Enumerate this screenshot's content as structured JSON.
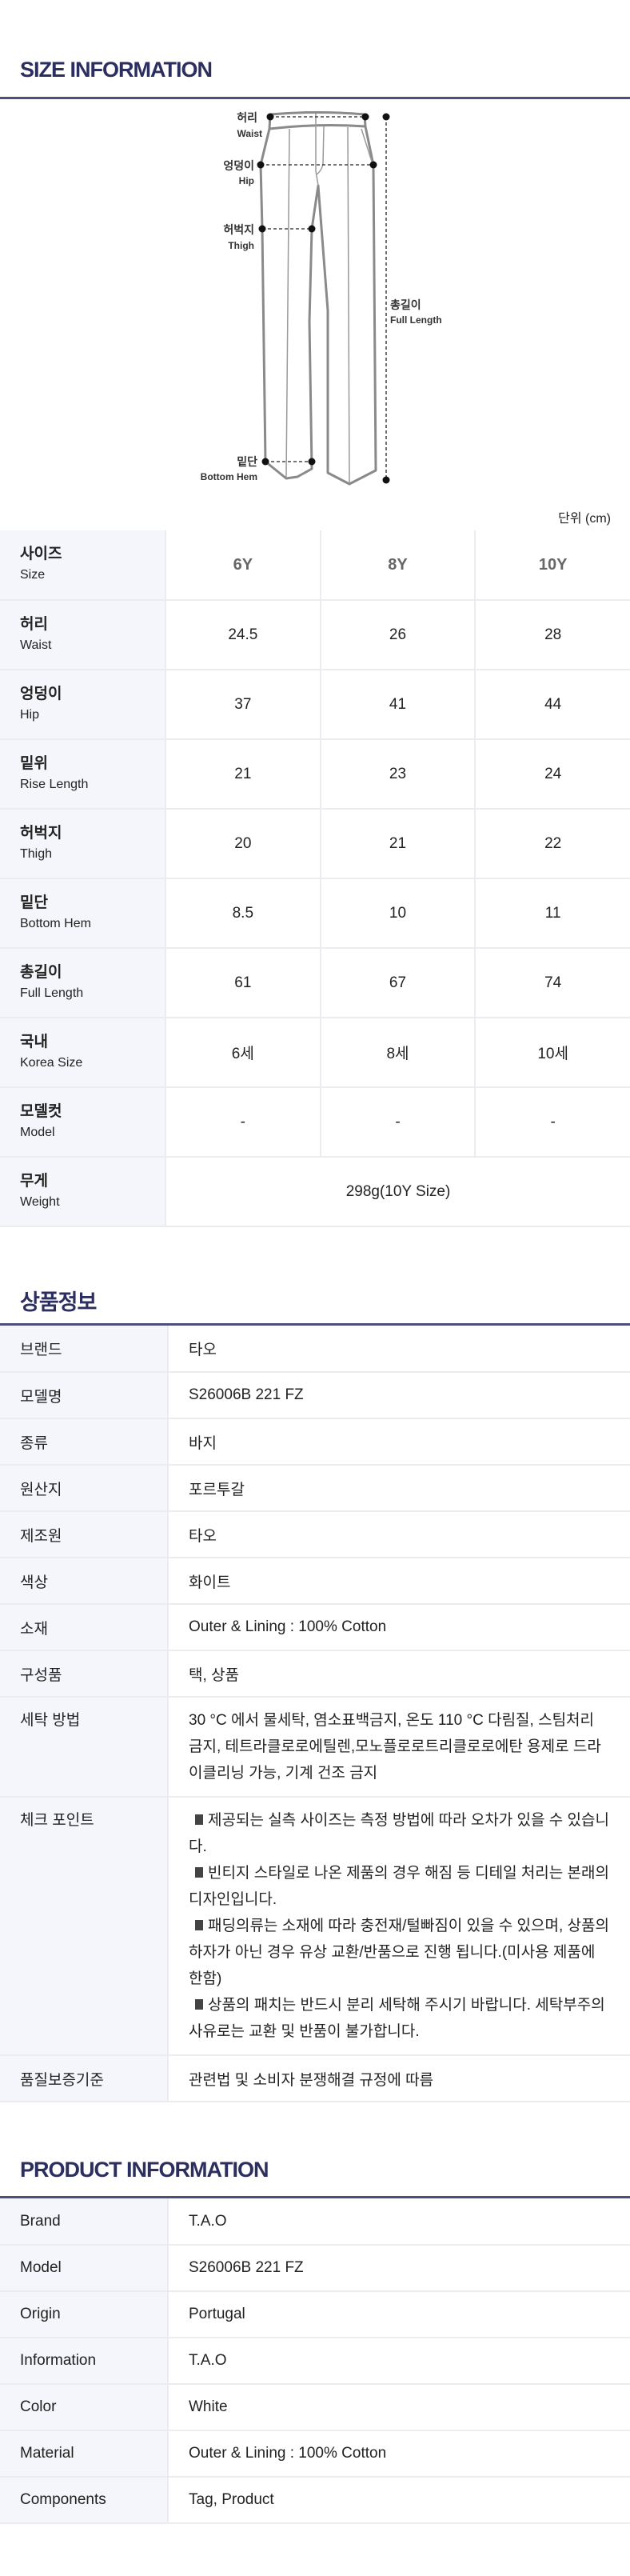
{
  "size_info": {
    "title": "SIZE INFORMATION",
    "diagram": {
      "waist": {
        "ko": "허리",
        "en": "Waist"
      },
      "hip": {
        "ko": "엉덩이",
        "en": "Hip"
      },
      "thigh": {
        "ko": "허벅지",
        "en": "Thigh"
      },
      "hem": {
        "ko": "밑단",
        "en": "Bottom Hem"
      },
      "full": {
        "ko": "총길이",
        "en": "Full Length"
      }
    },
    "unit": "단위 (cm)",
    "header": {
      "ko": "사이즈",
      "en": "Size",
      "sizes": [
        "6Y",
        "8Y",
        "10Y"
      ]
    },
    "rows": [
      {
        "ko": "허리",
        "en": "Waist",
        "values": [
          "24.5",
          "26",
          "28"
        ]
      },
      {
        "ko": "엉덩이",
        "en": "Hip",
        "values": [
          "37",
          "41",
          "44"
        ]
      },
      {
        "ko": "밑위",
        "en": "Rise Length",
        "values": [
          "21",
          "23",
          "24"
        ]
      },
      {
        "ko": "허벅지",
        "en": "Thigh",
        "values": [
          "20",
          "21",
          "22"
        ]
      },
      {
        "ko": "밑단",
        "en": "Bottom Hem",
        "values": [
          "8.5",
          "10",
          "11"
        ]
      },
      {
        "ko": "총길이",
        "en": "Full Length",
        "values": [
          "61",
          "67",
          "74"
        ]
      },
      {
        "ko": "국내",
        "en": "Korea Size",
        "values": [
          "6세",
          "8세",
          "10세"
        ]
      },
      {
        "ko": "모델컷",
        "en": "Model",
        "values": [
          "-",
          "-",
          "-"
        ]
      }
    ],
    "weight": {
      "ko": "무게",
      "en": "Weight",
      "value": "298g(10Y Size)"
    }
  },
  "product_ko": {
    "title": "상품정보",
    "rows": [
      {
        "label": "브랜드",
        "value": "타오"
      },
      {
        "label": "모델명",
        "value": "S26006B 221 FZ"
      },
      {
        "label": "종류",
        "value": "바지"
      },
      {
        "label": "원산지",
        "value": "포르투갈"
      },
      {
        "label": "제조원",
        "value": "타오"
      },
      {
        "label": "색상",
        "value": "화이트"
      },
      {
        "label": "소재",
        "value": "Outer & Lining : 100% Cotton"
      },
      {
        "label": "구성품",
        "value": "택, 상품"
      },
      {
        "label": "세탁 방법",
        "value": "30 °C 에서 물세탁, 염소표백금지, 온도 110 °C 다림질, 스팀처리 금지, 테트라클로로에틸렌,모노플로로트리클로로에탄 용제로 드라이클리닝 가능, 기계 건조 금지"
      }
    ],
    "checkpoint": {
      "label": "체크 포인트",
      "items": [
        "제공되는 실측 사이즈는 측정 방법에 따라 오차가 있을 수 있습니다.",
        "빈티지 스타일로 나온 제품의 경우 해짐 등 디테일 처리는 본래의 디자인입니다.",
        "패딩의류는 소재에 따라 충전재/털빠짐이 있을 수 있으며, 상품의 하자가 아닌 경우 유상 교환/반품으로 진행 됩니다.(미사용 제품에 한함)",
        "상품의 패치는 반드시 분리 세탁해 주시기 바랍니다. 세탁부주의 사유로는 교환 및 반품이 불가합니다."
      ]
    },
    "quality": {
      "label": "품질보증기준",
      "value": "관련법 및 소비자 분쟁해결 규정에 따름"
    }
  },
  "product_en": {
    "title": "PRODUCT INFORMATION",
    "rows": [
      {
        "label": "Brand",
        "value": "T.A.O"
      },
      {
        "label": "Model",
        "value": "S26006B 221 FZ"
      },
      {
        "label": "Origin",
        "value": "Portugal"
      },
      {
        "label": "Information",
        "value": "T.A.O"
      },
      {
        "label": "Color",
        "value": "White"
      },
      {
        "label": "Material",
        "value": "Outer & Lining : 100% Cotton"
      },
      {
        "label": "Components",
        "value": "Tag, Product"
      }
    ]
  },
  "colors": {
    "heading": "#2b2e5f",
    "rule": "#4b4f7c",
    "label_bg": "#f5f6fb"
  }
}
